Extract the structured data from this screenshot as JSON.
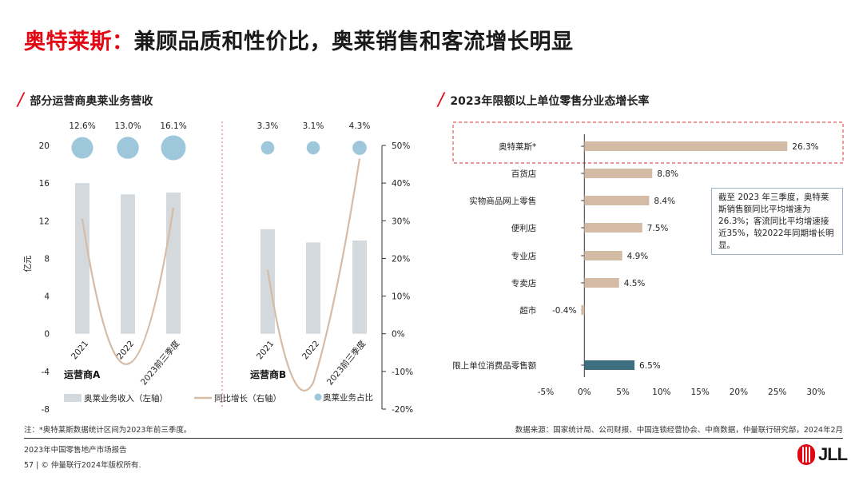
{
  "page": {
    "title_accent": "奥特莱斯：",
    "title_rest": "兼顾品质和性价比，奥莱销售和客流增长明显"
  },
  "left_section": {
    "title": "部分运营商奥莱业务营收"
  },
  "right_section": {
    "title": "2023年限额以上单位零售分业态增长率"
  },
  "note_box": {
    "text": "截至 2023 年三季度，奥特莱斯销售额同比平均增速为26.3%；客流同比平均增速接近35%，较2022年同期增长明显。"
  },
  "footnote_left": "注：*奥特莱斯数据统计区间为2023年前三季度。",
  "footnote_right": "数据来源：国家统计局、公司财报、中国连锁经营协会、中商数据，仲量联行研究部，2024年2月",
  "footer": {
    "report": "2023年中国零售地产市场报告",
    "copyright": "57 | © 仲量联行2024年版权所有."
  },
  "logo": {
    "text": "JLL"
  },
  "colors": {
    "accent": "#e30613",
    "bar_grey": "#d3d9dd",
    "line_tan": "#d6bba5",
    "bubble_blue": "#9fc7dc",
    "hbar_tan": "#d4bba6",
    "hbar_teal": "#3d6f80",
    "highlight_border": "#e05a5a"
  },
  "chart_data": [
    {
      "type": "bar",
      "title": "部分运营商奥莱业务营收",
      "ylabel": "亿元",
      "ylim": [
        -8,
        20
      ],
      "yticks": [
        -8,
        -4,
        0,
        4,
        8,
        12,
        16,
        20
      ],
      "y2lim": [
        -20,
        50
      ],
      "y2ticks": [
        "-20%",
        "-10%",
        "0%",
        "10%",
        "20%",
        "30%",
        "40%",
        "50%"
      ],
      "groups": [
        {
          "name": "运营商A",
          "categories": [
            "2021",
            "2022",
            "2023前三季度"
          ],
          "revenue": [
            16.0,
            14.8,
            15.0
          ],
          "yoy_growth_pct": [
            30.5,
            -8.0,
            33.5
          ],
          "share": [
            "12.6%",
            "13.0%",
            "16.1%"
          ],
          "share_values": [
            12.6,
            13.0,
            16.1
          ]
        },
        {
          "name": "运营商B",
          "categories": [
            "2021",
            "2022",
            "2023前三季度"
          ],
          "revenue": [
            11.1,
            9.7,
            9.9
          ],
          "yoy_growth_pct": [
            17.0,
            -13.0,
            46.5
          ],
          "share": [
            "3.3%",
            "3.1%",
            "4.3%"
          ],
          "share_values": [
            3.3,
            3.1,
            4.3
          ]
        }
      ],
      "legend": [
        "奥莱业务收入（左轴）",
        "同比增长（右轴）",
        "奥莱业务占比"
      ]
    },
    {
      "type": "bar",
      "orientation": "horizontal",
      "title": "2023年限额以上单位零售分业态增长率",
      "categories": [
        "奥特莱斯*",
        "百货店",
        "实物商品网上零售",
        "便利店",
        "专业店",
        "专卖店",
        "超市",
        "限上单位消费品零售额"
      ],
      "values": [
        26.3,
        8.8,
        8.4,
        7.5,
        4.9,
        4.5,
        -0.4,
        6.5
      ],
      "value_labels": [
        "26.3%",
        "8.8%",
        "8.4%",
        "7.5%",
        "4.9%",
        "4.5%",
        "-0.4%",
        "6.5%"
      ],
      "xlim": [
        -5,
        30
      ],
      "xticks": [
        "-5%",
        "0%",
        "5%",
        "10%",
        "15%",
        "20%",
        "25%",
        "30%"
      ],
      "highlight": "奥特莱斯*"
    }
  ]
}
